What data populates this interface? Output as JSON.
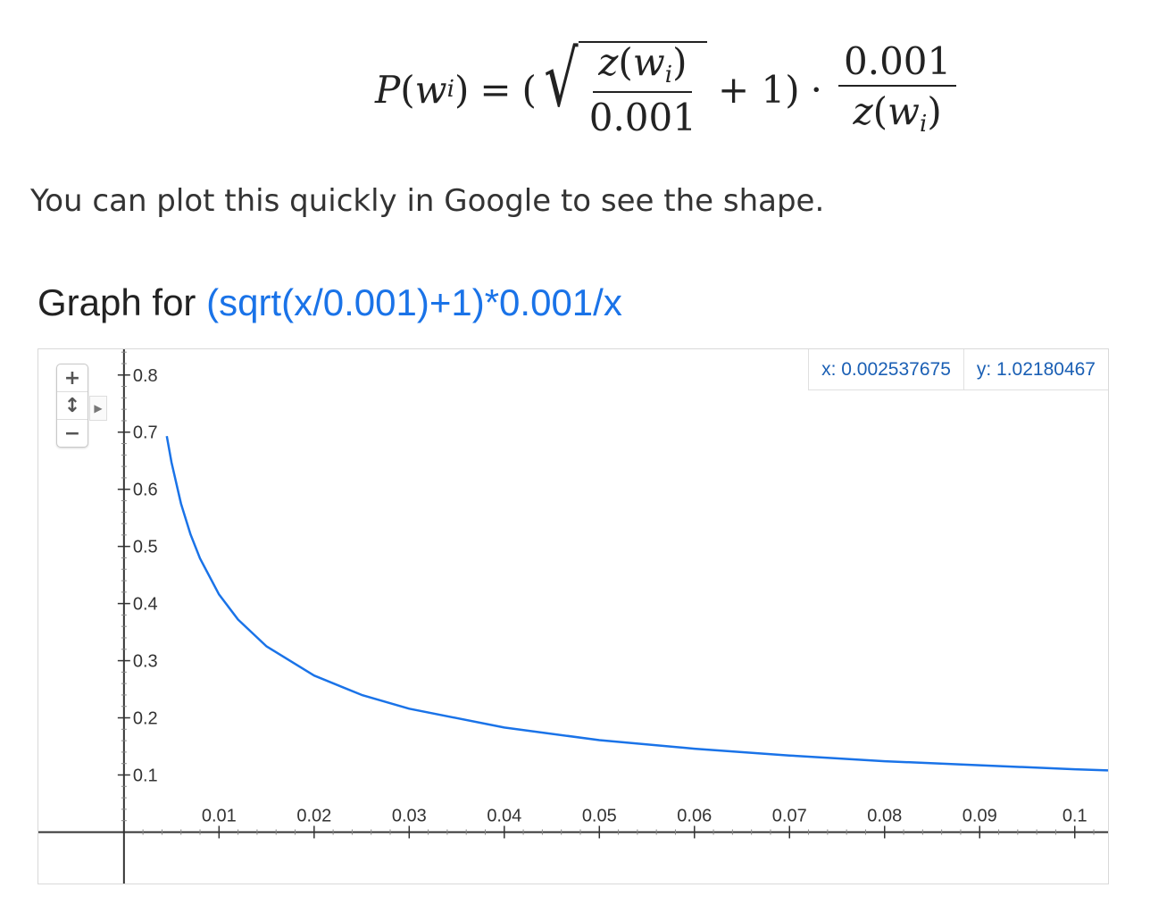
{
  "formula": {
    "lhs_func": "P",
    "var": "w",
    "sub": "i",
    "z": "z",
    "const": "0.001",
    "plus_one": "+ 1)",
    "open": "(",
    "equals": "=",
    "dot": "·"
  },
  "sentence": "You can plot this quickly in Google to see the shape.",
  "graph": {
    "heading_prefix": "Graph for",
    "expression": "(sqrt(x/0.001)+1)*0.001/x",
    "readout_x": "x: 0.002537675",
    "readout_y": "y: 1.02180467",
    "colors": {
      "curve": "#1a73e8",
      "axis": "#333333",
      "label": "#333333",
      "readout": "#1a5fb4"
    },
    "zoom_icons": [
      "zoom-in-icon",
      "pan-icon",
      "zoom-out-icon"
    ]
  },
  "chart_data": {
    "type": "line",
    "title": "",
    "xlabel": "",
    "ylabel": "",
    "function": "(sqrt(x/0.001)+1)*0.001/x",
    "xlim": [
      -0.009,
      0.1035
    ],
    "ylim": [
      -0.09,
      0.845
    ],
    "x_ticks": [
      0.01,
      0.02,
      0.03,
      0.04,
      0.05,
      0.06,
      0.07,
      0.08,
      0.09,
      0.1
    ],
    "x_tick_labels": [
      "0.01",
      "0.02",
      "0.03",
      "0.04",
      "0.05",
      "0.06",
      "0.07",
      "0.08",
      "0.09",
      "0.1"
    ],
    "y_ticks": [
      0.1,
      0.2,
      0.3,
      0.4,
      0.5,
      0.6,
      0.7,
      0.8
    ],
    "y_tick_labels": [
      "0.1",
      "0.2",
      "0.3",
      "0.4",
      "0.5",
      "0.6",
      "0.7",
      "0.8"
    ],
    "series": [
      {
        "x": [
          0.0045,
          0.005,
          0.006,
          0.007,
          0.008,
          0.01,
          0.012,
          0.015,
          0.02,
          0.025,
          0.03,
          0.04,
          0.05,
          0.06,
          0.07,
          0.08,
          0.09,
          0.1,
          0.1035
        ],
        "y": [
          0.693,
          0.647,
          0.575,
          0.521,
          0.479,
          0.416,
          0.372,
          0.325,
          0.274,
          0.24,
          0.216,
          0.183,
          0.161,
          0.146,
          0.134,
          0.124,
          0.117,
          0.11,
          0.108
        ]
      }
    ],
    "grid": false,
    "legend": "none"
  }
}
